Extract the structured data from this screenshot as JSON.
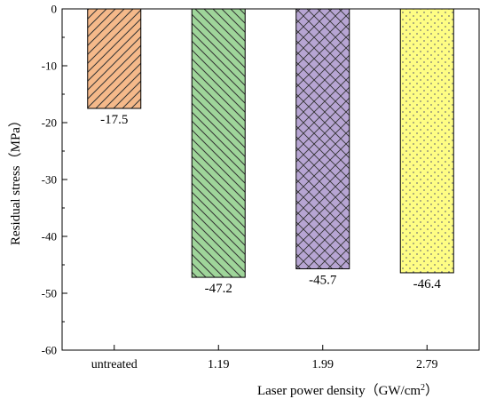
{
  "chart_data": {
    "type": "bar",
    "categories": [
      "untreated",
      "1.19",
      "1.99",
      "2.79"
    ],
    "values": [
      -17.5,
      -47.2,
      -45.7,
      -46.4
    ],
    "value_labels": [
      "-17.5",
      "-47.2",
      "-45.7",
      "-46.4"
    ],
    "ylabel": "Residual stress（MPa）",
    "xlabel": "Laser power density（GW/cm",
    "xlabel_superscript": "2",
    "xlabel_suffix": "）",
    "ylim": [
      -60,
      0
    ],
    "yticks": [
      0,
      -10,
      -20,
      -30,
      -40,
      -50,
      -60
    ],
    "ytick_labels": [
      "0",
      "-10",
      "-20",
      "-30",
      "-40",
      "-50",
      "-60"
    ],
    "grid": false,
    "legend": "none",
    "bar_fills": [
      "#f5b98a",
      "#9fd59a",
      "#b7a5d3",
      "#fefd84"
    ],
    "bar_patterns": [
      "diagonal-hatch",
      "diagonal-hatch",
      "cross-hatch",
      "dots"
    ]
  }
}
